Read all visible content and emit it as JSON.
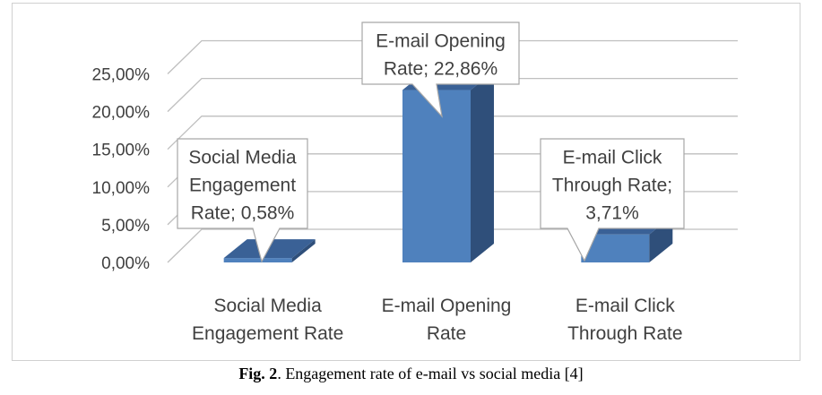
{
  "chart_data": {
    "type": "bar",
    "categories": [
      "Social Media Engagement Rate",
      "E-mail Opening Rate",
      "E-mail Click Through Rate"
    ],
    "category_label_lines": [
      [
        "Social Media",
        "Engagement Rate"
      ],
      [
        "E-mail Opening",
        "Rate"
      ],
      [
        "E-mail Click",
        "Through Rate"
      ]
    ],
    "values": [
      0.58,
      22.86,
      3.71
    ],
    "data_labels": [
      [
        "Social Media",
        "Engagement",
        "Rate; 0,58%"
      ],
      [
        "E-mail Opening",
        "Rate; 22,86%"
      ],
      [
        "E-mail Click",
        "Through Rate;",
        "3,71%"
      ]
    ],
    "y_ticks": [
      "0,00%",
      "5,00%",
      "10,00%",
      "15,00%",
      "20,00%",
      "25,00%"
    ],
    "ylim": [
      0,
      25
    ],
    "grid": true,
    "style": "3d-column",
    "colors": {
      "front": "#4f81bd",
      "side": "#2f4f7a",
      "top": "#3a6196",
      "grid": "#bfbfbf",
      "text": "#404040"
    }
  },
  "caption": {
    "label": "Fig. 2",
    "text": ". Engagement rate of e-mail vs social media [4]"
  }
}
